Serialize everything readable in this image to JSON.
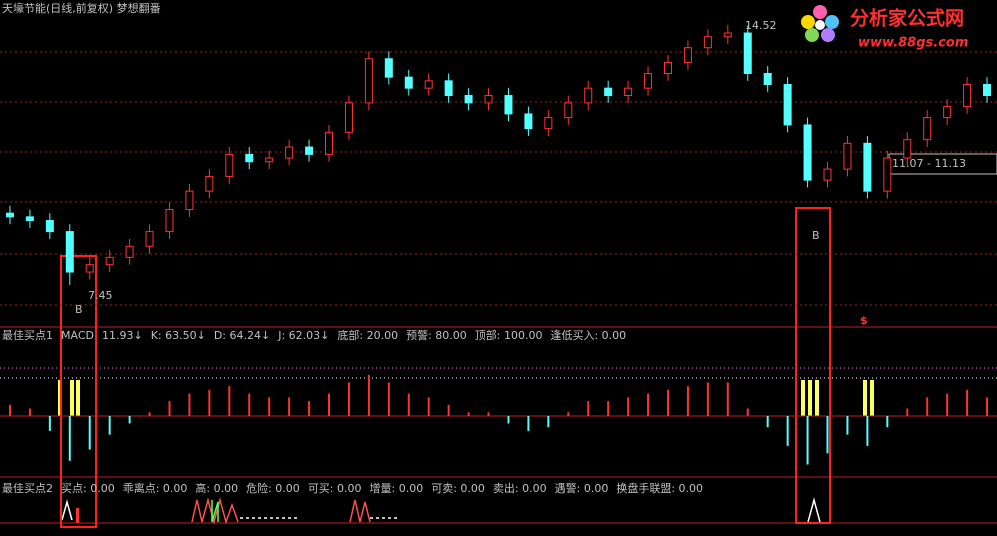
{
  "header": {
    "title": "天壕节能(日线,前复权) 梦想翻番"
  },
  "logo": {
    "name": "分析家公式网",
    "url": "www.88gs.com"
  },
  "chart_data": [
    {
      "type": "candlestick",
      "up_color": "#ff3232",
      "down_color": "#54ffff",
      "ylim": [
        6.36,
        14.79
      ],
      "open": [
        9.4,
        9.3,
        9.2,
        8.9,
        7.8,
        8.0,
        8.2,
        8.5,
        8.9,
        9.5,
        10.0,
        10.4,
        11.0,
        10.8,
        10.9,
        11.2,
        11.0,
        11.6,
        12.4,
        13.6,
        13.1,
        12.8,
        13.0,
        12.6,
        12.4,
        12.6,
        12.1,
        11.7,
        12.0,
        12.4,
        12.8,
        12.6,
        12.8,
        13.2,
        13.5,
        13.9,
        14.2,
        14.3,
        13.2,
        12.9,
        11.8,
        10.3,
        10.6,
        11.3,
        10.0,
        10.9,
        11.4,
        12.0,
        12.3,
        12.9
      ],
      "close": [
        9.3,
        9.2,
        8.9,
        7.8,
        8.0,
        8.2,
        8.5,
        8.9,
        9.5,
        10.0,
        10.4,
        11.0,
        10.8,
        10.9,
        11.2,
        11.0,
        11.6,
        12.4,
        13.6,
        13.1,
        12.8,
        13.0,
        12.6,
        12.4,
        12.6,
        12.1,
        11.7,
        12.0,
        12.4,
        12.8,
        12.6,
        12.8,
        13.2,
        13.5,
        13.9,
        14.2,
        14.3,
        13.2,
        12.9,
        11.8,
        10.3,
        10.6,
        11.3,
        10.0,
        10.9,
        11.4,
        12.0,
        12.3,
        12.9,
        12.6
      ],
      "high": [
        9.6,
        9.5,
        9.4,
        9.1,
        8.2,
        8.4,
        8.7,
        9.1,
        9.7,
        10.2,
        10.6,
        11.2,
        11.2,
        11.1,
        11.4,
        11.4,
        11.8,
        12.6,
        13.8,
        13.8,
        13.3,
        13.2,
        13.2,
        12.8,
        12.8,
        12.8,
        12.3,
        12.2,
        12.6,
        13.0,
        13.0,
        13.0,
        13.4,
        13.7,
        14.1,
        14.4,
        14.52,
        14.5,
        13.4,
        13.1,
        12.0,
        10.8,
        11.5,
        11.5,
        11.1,
        11.6,
        12.2,
        12.5,
        13.1,
        13.1
      ],
      "low": [
        9.1,
        9.0,
        8.7,
        7.45,
        7.6,
        7.8,
        8.0,
        8.3,
        8.7,
        9.3,
        9.8,
        10.2,
        10.6,
        10.6,
        10.7,
        10.8,
        10.8,
        11.4,
        12.2,
        12.9,
        12.6,
        12.6,
        12.4,
        12.2,
        12.2,
        11.9,
        11.5,
        11.5,
        11.8,
        12.2,
        12.4,
        12.4,
        12.6,
        13.0,
        13.3,
        13.7,
        14.0,
        13.0,
        12.7,
        11.6,
        10.1,
        10.1,
        10.4,
        9.8,
        9.8,
        10.7,
        11.2,
        11.8,
        12.1,
        12.4
      ],
      "annotations": [
        "14.52",
        "7.45",
        "11.07 - 11.13",
        "B",
        "B"
      ]
    },
    {
      "type": "bar",
      "up_color": "#ff3232",
      "down_color": "#54ffff",
      "ylim": [
        -1.5,
        1.5
      ],
      "values": [
        0.3,
        0.2,
        -0.4,
        -1.2,
        -0.9,
        -0.5,
        -0.2,
        0.1,
        0.4,
        0.6,
        0.7,
        0.8,
        0.6,
        0.5,
        0.5,
        0.4,
        0.6,
        0.9,
        1.1,
        0.9,
        0.6,
        0.5,
        0.3,
        0.1,
        0.1,
        -0.2,
        -0.4,
        -0.3,
        0.1,
        0.4,
        0.4,
        0.5,
        0.6,
        0.7,
        0.8,
        0.9,
        0.9,
        0.2,
        -0.3,
        -0.8,
        -1.3,
        -1.0,
        -0.5,
        -0.8,
        -0.3,
        0.2,
        0.5,
        0.6,
        0.7,
        0.5
      ],
      "marker": "$",
      "legend_items": [
        {
          "text": "最佳买点1",
          "color": "#c0c0c0"
        },
        {
          "text": "MACD",
          "color": "#ffffff"
        },
        {
          "text": "11.93↓",
          "color": "#ffffff"
        },
        {
          "text": "K: 63.50↓",
          "color": "#ffffff"
        },
        {
          "text": "D: 64.24↓",
          "color": "#ffff54"
        },
        {
          "text": "J: 62.03↓",
          "color": "#ff54ff"
        },
        {
          "text": "底部: 20.00",
          "color": "#54ff54"
        },
        {
          "text": "预警: 80.00",
          "color": "#ffffff"
        },
        {
          "text": "顶部: 100.00",
          "color": "#ffffff"
        },
        {
          "text": "逢低买入: 0.00",
          "color": "#ff3232"
        }
      ]
    },
    {
      "type": "signal",
      "legend_items": [
        {
          "text": "最佳买点2",
          "color": "#c0c0c0"
        },
        {
          "text": "买点: 0.00",
          "color": "#ffffff"
        },
        {
          "text": "乖离点: 0.00",
          "color": "#ffffff"
        },
        {
          "text": "高: 0.00",
          "color": "#ff54ff"
        },
        {
          "text": "危险: 0.00",
          "color": "#54ff54"
        },
        {
          "text": "可买: 0.00",
          "color": "#ffffff"
        },
        {
          "text": "增量: 0.00",
          "color": "#3030ff"
        },
        {
          "text": "可卖: 0.00",
          "color": "#ffffff"
        },
        {
          "text": "卖出: 0.00",
          "color": "#ffffff"
        },
        {
          "text": "遇警: 0.00",
          "color": "#ff54ff"
        },
        {
          "text": "换盘手联盟: 0.00",
          "color": "#ff3232"
        }
      ]
    }
  ]
}
